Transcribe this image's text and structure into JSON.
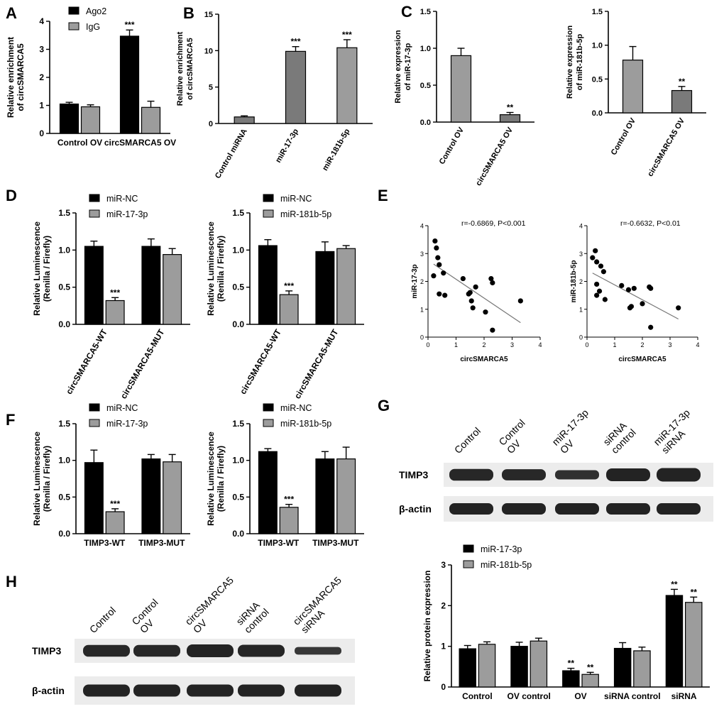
{
  "colors": {
    "black": "#000000",
    "gray": "#9c9c9c",
    "line": "#777777",
    "blot_bg": "#ececec",
    "band": "#1c1c1c"
  },
  "panels": {
    "A": "A",
    "B": "B",
    "C": "C",
    "D": "D",
    "E": "E",
    "F": "F",
    "G": "G",
    "H": "H"
  },
  "chart_data": [
    {
      "id": "A",
      "type": "bar",
      "ylabel": [
        "Relative enrichment",
        "of circSMARCA5"
      ],
      "ylim": [
        0,
        4
      ],
      "yticks": [
        0,
        1,
        2,
        3,
        4
      ],
      "categories": [
        "Control OV",
        "circSMARCA5 OV"
      ],
      "series": [
        {
          "name": "Ago2",
          "color": "#000000",
          "values": [
            1.05,
            3.47
          ],
          "errors": [
            0.06,
            0.22
          ],
          "sig": [
            "",
            "***"
          ]
        },
        {
          "name": "IgG",
          "color": "#9c9c9c",
          "values": [
            0.95,
            0.93
          ],
          "errors": [
            0.07,
            0.22
          ],
          "sig": [
            "",
            ""
          ]
        }
      ]
    },
    {
      "id": "B",
      "type": "bar",
      "ylabel": [
        "Relative enrichment",
        "of circSMARCA5"
      ],
      "ylim": [
        0,
        15
      ],
      "yticks": [
        0,
        5,
        10,
        15
      ],
      "categories": [
        "Control miRNA",
        "miR-17-3p",
        "miR-181b-5p"
      ],
      "values": [
        0.9,
        9.9,
        10.4
      ],
      "errors": [
        0.15,
        0.65,
        1.1
      ],
      "colors": [
        "#7a7a7a",
        "#7a7a7a",
        "#9c9c9c"
      ],
      "sig": [
        "",
        "***",
        "***"
      ]
    },
    {
      "id": "C1",
      "type": "bar",
      "ylabel": [
        "Relative expression",
        "of miR-17-3p"
      ],
      "ylim": [
        0,
        1.5
      ],
      "yticks": [
        "0.0",
        "0.5",
        "1.0",
        "1.5"
      ],
      "categories": [
        "Control OV",
        "circSMARCA5 OV"
      ],
      "values": [
        0.9,
        0.1
      ],
      "errors": [
        0.1,
        0.03
      ],
      "colors": [
        "#9c9c9c",
        "#7a7a7a"
      ],
      "sig": [
        "",
        "**"
      ]
    },
    {
      "id": "C2",
      "type": "bar",
      "ylabel": [
        "Relative expression",
        "of miR-181b-5p"
      ],
      "ylim": [
        0,
        1.5
      ],
      "yticks": [
        "0.0",
        "0.5",
        "1.0",
        "1.5"
      ],
      "categories": [
        "Control OV",
        "circSMARCA5 OV"
      ],
      "values": [
        0.78,
        0.33
      ],
      "errors": [
        0.2,
        0.06
      ],
      "colors": [
        "#9c9c9c",
        "#7a7a7a"
      ],
      "sig": [
        "",
        "**"
      ]
    },
    {
      "id": "D1",
      "type": "bar",
      "ylabel": [
        "Relative Luminescence",
        "(Renilla / Firefly)"
      ],
      "ylim": [
        0,
        1.5
      ],
      "yticks": [
        "0.0",
        "0.5",
        "1.0",
        "1.5"
      ],
      "categories": [
        "circSMARCA5-WT",
        "circSMARCA5-MUT"
      ],
      "series": [
        {
          "name": "miR-NC",
          "color": "#000000",
          "values": [
            1.05,
            1.05
          ],
          "errors": [
            0.07,
            0.1
          ],
          "sig": [
            "",
            ""
          ]
        },
        {
          "name": "miR-17-3p",
          "color": "#9c9c9c",
          "values": [
            0.32,
            0.94
          ],
          "errors": [
            0.04,
            0.08
          ],
          "sig": [
            "***",
            ""
          ]
        }
      ]
    },
    {
      "id": "D2",
      "type": "bar",
      "ylabel": [
        "Relative Luminescence",
        "(Renilla / Firefly)"
      ],
      "ylim": [
        0,
        1.5
      ],
      "yticks": [
        "0.0",
        "0.5",
        "1.0",
        "1.5"
      ],
      "categories": [
        "circSMARCA5-WT",
        "circSMARCA5-MUT"
      ],
      "series": [
        {
          "name": "miR-NC",
          "color": "#000000",
          "values": [
            1.06,
            0.98
          ],
          "errors": [
            0.08,
            0.13
          ],
          "sig": [
            "",
            ""
          ]
        },
        {
          "name": "miR-181b-5p",
          "color": "#9c9c9c",
          "values": [
            0.4,
            1.02
          ],
          "errors": [
            0.05,
            0.04
          ],
          "sig": [
            "***",
            ""
          ]
        }
      ]
    },
    {
      "id": "E1",
      "type": "scatter",
      "annotation": "r=-0.6869, P<0.001",
      "xlabel": "circSMARCA5",
      "ylabel": "miR-17-3p",
      "xlim": [
        0,
        4
      ],
      "ylim": [
        0,
        4
      ],
      "xticks": [
        0,
        1,
        2,
        3,
        4
      ],
      "yticks": [
        0,
        1,
        2,
        3,
        4
      ],
      "points": [
        [
          0.25,
          3.45
        ],
        [
          0.3,
          3.2
        ],
        [
          0.35,
          2.85
        ],
        [
          0.2,
          2.2
        ],
        [
          0.4,
          2.6
        ],
        [
          0.55,
          2.3
        ],
        [
          0.4,
          1.55
        ],
        [
          0.6,
          1.5
        ],
        [
          1.25,
          2.1
        ],
        [
          1.5,
          1.6
        ],
        [
          1.55,
          1.3
        ],
        [
          1.7,
          1.8
        ],
        [
          1.6,
          1.05
        ],
        [
          1.45,
          1.55
        ],
        [
          2.25,
          2.1
        ],
        [
          2.3,
          1.95
        ],
        [
          2.05,
          0.9
        ],
        [
          2.3,
          0.25
        ],
        [
          3.3,
          1.3
        ]
      ],
      "fit": [
        [
          0.2,
          2.62
        ],
        [
          3.3,
          0.52
        ]
      ]
    },
    {
      "id": "E2",
      "type": "scatter",
      "annotation": "r=-0.6632, P<0.01",
      "xlabel": "circSMARCA5",
      "ylabel": "miR-181b-5p",
      "xlim": [
        0,
        4
      ],
      "ylim": [
        0,
        4
      ],
      "xticks": [
        0,
        1,
        2,
        3,
        4
      ],
      "yticks": [
        0,
        1,
        2,
        3,
        4
      ],
      "points": [
        [
          0.2,
          2.85
        ],
        [
          0.3,
          3.1
        ],
        [
          0.35,
          2.7
        ],
        [
          0.5,
          2.55
        ],
        [
          0.6,
          2.35
        ],
        [
          0.35,
          1.9
        ],
        [
          0.45,
          1.65
        ],
        [
          0.35,
          1.5
        ],
        [
          0.65,
          1.35
        ],
        [
          1.25,
          1.85
        ],
        [
          1.5,
          1.7
        ],
        [
          1.7,
          1.75
        ],
        [
          1.55,
          1.05
        ],
        [
          1.6,
          1.1
        ],
        [
          2.0,
          1.2
        ],
        [
          2.25,
          1.8
        ],
        [
          2.3,
          1.75
        ],
        [
          2.3,
          0.35
        ],
        [
          3.3,
          1.05
        ]
      ],
      "fit": [
        [
          0.2,
          2.3
        ],
        [
          3.3,
          0.65
        ]
      ]
    },
    {
      "id": "F1",
      "type": "bar",
      "ylabel": [
        "Relative Luminescence",
        "(Renilla / Firefly)"
      ],
      "ylim": [
        0,
        1.5
      ],
      "yticks": [
        "0.0",
        "0.5",
        "1.0",
        "1.5"
      ],
      "categories": [
        "TIMP3-WT",
        "TIMP3-MUT"
      ],
      "series": [
        {
          "name": "miR-NC",
          "color": "#000000",
          "values": [
            0.97,
            1.02
          ],
          "errors": [
            0.17,
            0.06
          ],
          "sig": [
            "",
            ""
          ]
        },
        {
          "name": "miR-17-3p",
          "color": "#9c9c9c",
          "values": [
            0.3,
            0.98
          ],
          "errors": [
            0.04,
            0.1
          ],
          "sig": [
            "***",
            ""
          ]
        }
      ]
    },
    {
      "id": "F2",
      "type": "bar",
      "ylabel": [
        "Relative Luminescence",
        "(Renilla / Firefly)"
      ],
      "ylim": [
        0,
        1.5
      ],
      "yticks": [
        "0.0",
        "0.5",
        "1.0",
        "1.5"
      ],
      "categories": [
        "TIMP3-WT",
        "TIMP3-MUT"
      ],
      "series": [
        {
          "name": "miR-NC",
          "color": "#000000",
          "values": [
            1.12,
            1.02
          ],
          "errors": [
            0.04,
            0.1
          ],
          "sig": [
            "",
            ""
          ]
        },
        {
          "name": "miR-181b-5p",
          "color": "#9c9c9c",
          "values": [
            0.36,
            1.02
          ],
          "errors": [
            0.04,
            0.16
          ],
          "sig": [
            "***",
            ""
          ]
        }
      ]
    },
    {
      "id": "G_bar",
      "type": "bar",
      "ylabel": [
        "Relative protein expression"
      ],
      "ylim": [
        0,
        3
      ],
      "yticks": [
        0,
        1,
        2,
        3
      ],
      "categories": [
        "Control",
        "OV control",
        "OV",
        "siRNA control",
        "siRNA"
      ],
      "series": [
        {
          "name": "miR-17-3p",
          "color": "#000000",
          "values": [
            0.94,
            1.0,
            0.4,
            0.95,
            2.25
          ],
          "errors": [
            0.08,
            0.1,
            0.06,
            0.14,
            0.15
          ],
          "sig": [
            "",
            "",
            "**",
            "",
            "**"
          ]
        },
        {
          "name": "miR-181b-5p",
          "color": "#9c9c9c",
          "values": [
            1.05,
            1.13,
            0.31,
            0.89,
            2.08
          ],
          "errors": [
            0.06,
            0.07,
            0.05,
            0.09,
            0.13
          ],
          "sig": [
            "",
            "",
            "**",
            "",
            "**"
          ]
        }
      ]
    }
  ],
  "blots": {
    "G": {
      "lanes": [
        "Control",
        "Control\nOV",
        "miR-17-3p\nOV",
        "siRNA\ncontrol",
        "miR-17-3p\nsiRNA"
      ],
      "rows": [
        {
          "label": "TIMP3",
          "intensity": [
            0.92,
            0.88,
            0.72,
            1.0,
            1.05
          ]
        },
        {
          "label": "β-actin",
          "intensity": [
            1.0,
            1.0,
            1.0,
            1.0,
            1.0
          ]
        }
      ]
    },
    "H": {
      "lanes": [
        "Control",
        "Control\nOV",
        "circSMARCA5\nOV",
        "siRNA\ncontrol",
        "circSMARCA5\nsiRNA"
      ],
      "rows": [
        {
          "label": "TIMP3",
          "intensity": [
            0.92,
            0.92,
            1.0,
            0.95,
            0.6
          ]
        },
        {
          "label": "β-actin",
          "intensity": [
            1.0,
            1.0,
            1.0,
            1.0,
            1.0
          ]
        }
      ]
    }
  }
}
